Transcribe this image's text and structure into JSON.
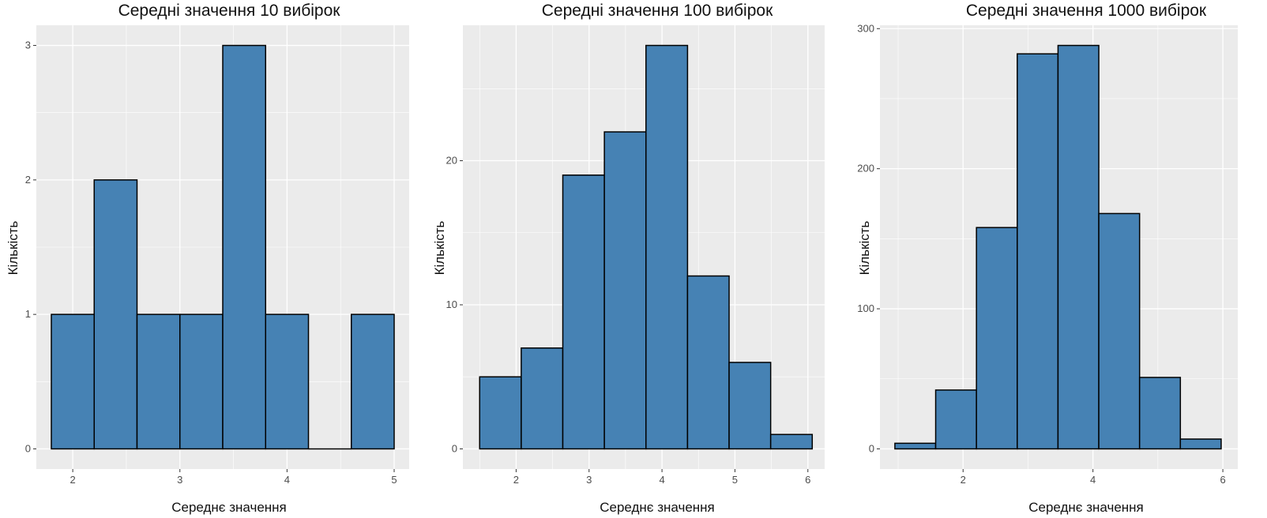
{
  "colors": {
    "panel": "#ebebeb",
    "grid": "#ffffff",
    "bar_fill": "#4682b4",
    "bar_stroke": "#000000",
    "tick_text": "#4d4d4d"
  },
  "chart_data": [
    {
      "type": "bar",
      "title": "Середні значення 10 вибірок",
      "xlabel": "Середнє значення",
      "ylabel": "Кількість",
      "xlim": [
        1.66,
        5.14
      ],
      "ylim": [
        -0.15,
        3.15
      ],
      "xticks": [
        2,
        3,
        4,
        5
      ],
      "yticks": [
        0,
        1,
        2,
        3
      ],
      "bin_width": 0.4,
      "grid": true,
      "bars": [
        {
          "x0": 1.8,
          "x1": 2.2,
          "count": 1
        },
        {
          "x0": 2.2,
          "x1": 2.6,
          "count": 2
        },
        {
          "x0": 2.6,
          "x1": 3.0,
          "count": 1
        },
        {
          "x0": 3.0,
          "x1": 3.4,
          "count": 1
        },
        {
          "x0": 3.4,
          "x1": 3.8,
          "count": 3
        },
        {
          "x0": 3.8,
          "x1": 4.2,
          "count": 1
        },
        {
          "x0": 4.2,
          "x1": 4.6,
          "count": 0
        },
        {
          "x0": 4.6,
          "x1": 5.0,
          "count": 1
        }
      ]
    },
    {
      "type": "bar",
      "title": "Середні значення 100 вибірок",
      "xlabel": "Середнє значення",
      "ylabel": "Кількість",
      "xlim": [
        1.27,
        6.23
      ],
      "ylim": [
        -1.4,
        29.4
      ],
      "xticks": [
        2,
        3,
        4,
        5,
        6
      ],
      "yticks": [
        0,
        10,
        20
      ],
      "bin_width": 0.57,
      "grid": true,
      "bars": [
        {
          "x0": 1.5,
          "x1": 2.07,
          "count": 5
        },
        {
          "x0": 2.07,
          "x1": 2.64,
          "count": 7
        },
        {
          "x0": 2.64,
          "x1": 3.21,
          "count": 19
        },
        {
          "x0": 3.21,
          "x1": 3.78,
          "count": 22
        },
        {
          "x0": 3.78,
          "x1": 4.35,
          "count": 28
        },
        {
          "x0": 4.35,
          "x1": 4.92,
          "count": 12
        },
        {
          "x0": 4.92,
          "x1": 5.49,
          "count": 6
        },
        {
          "x0": 5.49,
          "x1": 6.06,
          "count": 1
        }
      ]
    },
    {
      "type": "bar",
      "title": "Середні значення 1000 вибірок",
      "xlabel": "Середнє значення",
      "ylabel": "Кількість",
      "xlim": [
        0.72,
        6.23
      ],
      "ylim": [
        -14.4,
        302.4
      ],
      "xticks": [
        2,
        4,
        6
      ],
      "yticks": [
        0,
        100,
        200,
        300
      ],
      "bin_width": 0.628,
      "grid": true,
      "bars": [
        {
          "x0": 0.95,
          "x1": 1.578,
          "count": 4
        },
        {
          "x0": 1.578,
          "x1": 2.206,
          "count": 42
        },
        {
          "x0": 2.206,
          "x1": 2.834,
          "count": 158
        },
        {
          "x0": 2.834,
          "x1": 3.462,
          "count": 282
        },
        {
          "x0": 3.462,
          "x1": 4.09,
          "count": 288
        },
        {
          "x0": 4.09,
          "x1": 4.718,
          "count": 168
        },
        {
          "x0": 4.718,
          "x1": 5.346,
          "count": 51
        },
        {
          "x0": 5.346,
          "x1": 5.974,
          "count": 7
        }
      ]
    }
  ]
}
